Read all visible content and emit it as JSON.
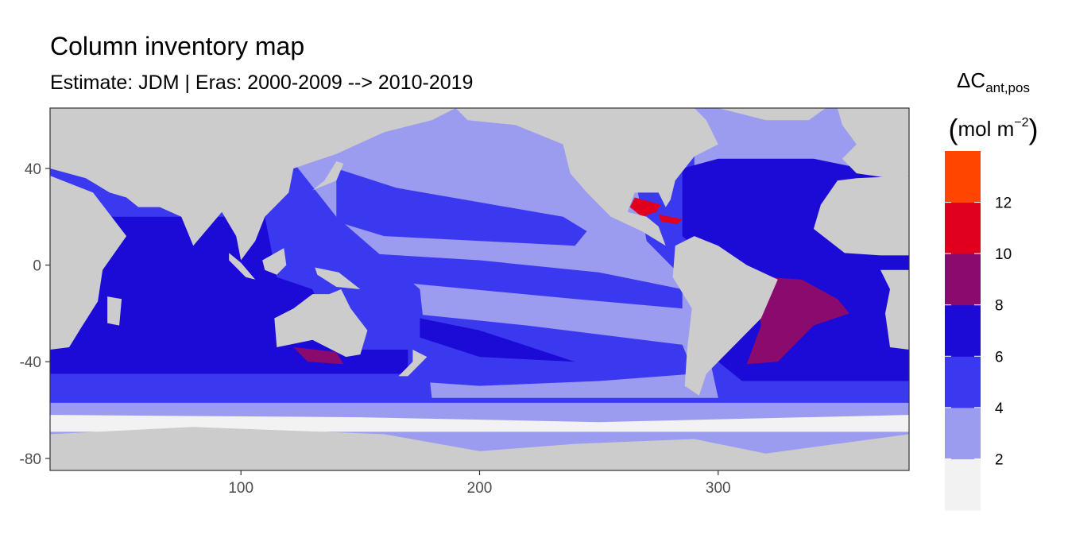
{
  "chart_data": {
    "type": "heatmap",
    "title": "Column inventory map",
    "subtitle": "Estimate: JDM  | Eras: 2000-2009 --> 2010-2019",
    "xlabel": "",
    "ylabel": "",
    "xlim": [
      20,
      380
    ],
    "ylim": [
      -85,
      65
    ],
    "x_ticks": [
      100,
      200,
      300
    ],
    "y_ticks": [
      40,
      0,
      -40,
      -80
    ],
    "grid": false,
    "legend": {
      "placement": "right",
      "title_main": "ΔC",
      "title_sub": "ant,pos",
      "title_units_pre": "mol m",
      "title_units_sup": "−2",
      "breaks": [
        "12",
        "10",
        "8",
        "6",
        "4",
        "2"
      ],
      "bins": [
        {
          "color": "#f2f2f2",
          "from": 0,
          "to": 2
        },
        {
          "color": "#9b9cf0",
          "from": 2,
          "to": 4
        },
        {
          "color": "#3b39f0",
          "from": 4,
          "to": 6
        },
        {
          "color": "#1c0ad6",
          "from": 6,
          "to": 8
        },
        {
          "color": "#8b0a6e",
          "from": 8,
          "to": 10
        },
        {
          "color": "#e0001e",
          "from": 10,
          "to": 12
        },
        {
          "color": "#ff4500",
          "from": 12,
          "to": 14
        }
      ]
    },
    "land_color": "#cccccc"
  }
}
